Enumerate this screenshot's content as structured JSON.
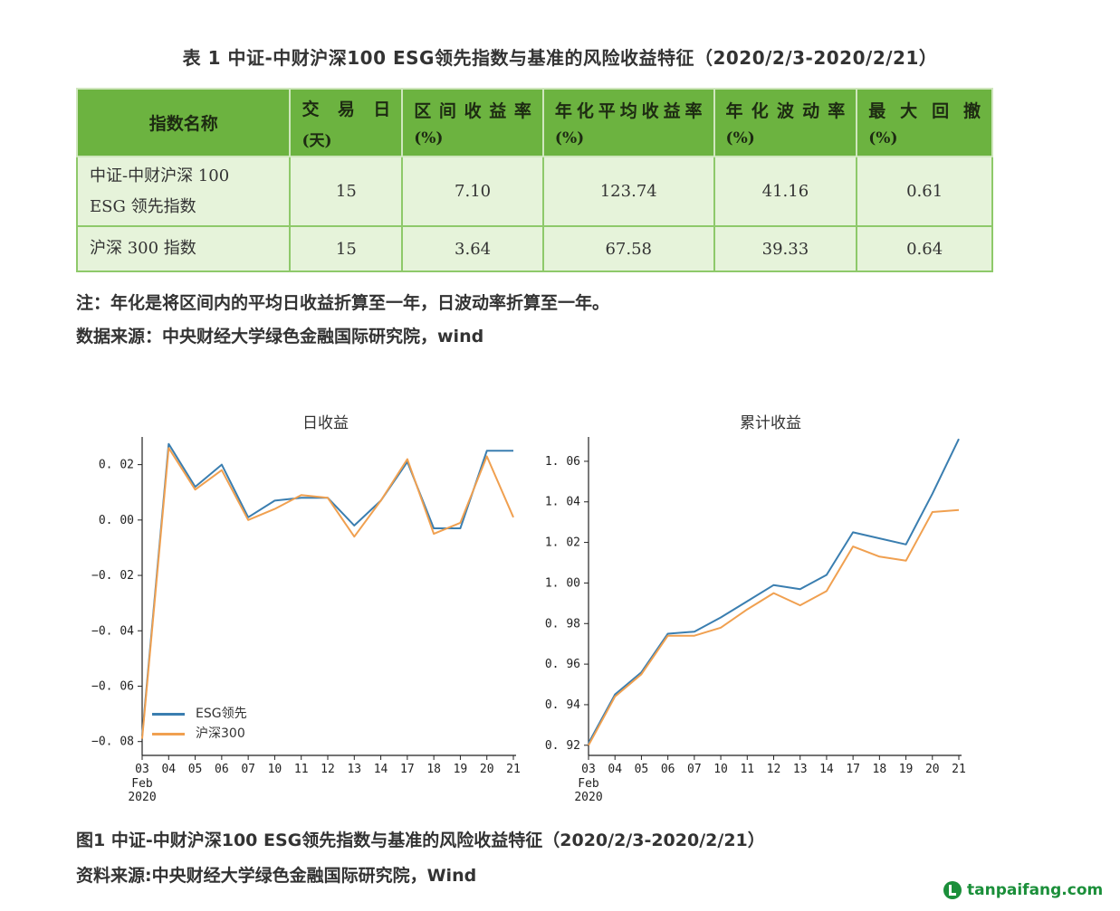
{
  "table": {
    "title": "表 1 中证-中财沪深100 ESG领先指数与基准的风险收益特征（2020/2/3-2020/2/21）",
    "headers": [
      {
        "line1": "指数名称",
        "line2": ""
      },
      {
        "line1": "交易日",
        "line2": "(天)"
      },
      {
        "line1": "区间收益率",
        "line2": "(%)"
      },
      {
        "line1": "年化平均收益率",
        "line2": "(%)"
      },
      {
        "line1": "年化波动率",
        "line2": "(%)"
      },
      {
        "line1": "最大回撤",
        "line2": "(%)"
      }
    ],
    "rows": [
      {
        "name_line1": "中证-中财沪深 100",
        "name_line2": "ESG 领先指数",
        "days": "15",
        "period_return": "7.10",
        "annual_return": "123.74",
        "annual_vol": "41.16",
        "max_drawdown": "0.61"
      },
      {
        "name_line1": "沪深 300 指数",
        "name_line2": "",
        "days": "15",
        "period_return": "3.64",
        "annual_return": "67.58",
        "annual_vol": "39.33",
        "max_drawdown": "0.64"
      }
    ]
  },
  "notes": {
    "note": "注：年化是将区间内的平均日收益折算至一年，日波动率折算至一年。",
    "source": "数据来源：中央财经大学绿色金融国际研究院，wind"
  },
  "chart_data": [
    {
      "type": "line",
      "title": "日收益",
      "x": [
        "03",
        "04",
        "05",
        "06",
        "07",
        "10",
        "11",
        "12",
        "13",
        "14",
        "17",
        "18",
        "19",
        "20",
        "21"
      ],
      "x_sub": [
        "Feb",
        "2020"
      ],
      "ylim": [
        -0.085,
        0.03
      ],
      "yticks": [
        0.02,
        0.0,
        -0.02,
        -0.04,
        -0.06,
        -0.08
      ],
      "ytick_labels": [
        "0. 02",
        "0. 00",
        "−0. 02",
        "−0. 04",
        "−0. 06",
        "−0. 08"
      ],
      "grid": false,
      "legend": "bottom-left",
      "series": [
        {
          "name": "ESG领先",
          "color": "#3a7eb0",
          "values": [
            -0.078,
            0.0275,
            0.012,
            0.02,
            0.001,
            0.007,
            0.008,
            0.008,
            -0.002,
            0.007,
            0.021,
            -0.003,
            -0.003,
            0.025,
            0.025
          ]
        },
        {
          "name": "沪深300",
          "color": "#f0a050",
          "values": [
            -0.079,
            0.026,
            0.011,
            0.018,
            0.0,
            0.004,
            0.009,
            0.008,
            -0.006,
            0.007,
            0.022,
            -0.005,
            -0.001,
            0.023,
            0.001
          ]
        }
      ]
    },
    {
      "type": "line",
      "title": "累计收益",
      "x": [
        "03",
        "04",
        "05",
        "06",
        "07",
        "10",
        "11",
        "12",
        "13",
        "14",
        "17",
        "18",
        "19",
        "20",
        "21"
      ],
      "x_sub": [
        "Feb",
        "2020"
      ],
      "ylim": [
        0.915,
        1.072
      ],
      "yticks": [
        1.06,
        1.04,
        1.02,
        1.0,
        0.98,
        0.96,
        0.94,
        0.92
      ],
      "ytick_labels": [
        "1. 06",
        "1. 04",
        "1. 02",
        "1. 00",
        "0. 98",
        "0. 96",
        "0. 94",
        "0. 92"
      ],
      "grid": false,
      "series": [
        {
          "name": "ESG领先",
          "color": "#3a7eb0",
          "values": [
            0.921,
            0.945,
            0.956,
            0.975,
            0.976,
            0.983,
            0.991,
            0.999,
            0.997,
            1.004,
            1.025,
            1.022,
            1.019,
            1.044,
            1.071
          ]
        },
        {
          "name": "沪深300",
          "color": "#f0a050",
          "values": [
            0.92,
            0.944,
            0.955,
            0.974,
            0.974,
            0.978,
            0.987,
            0.995,
            0.989,
            0.996,
            1.018,
            1.013,
            1.011,
            1.035,
            1.036
          ]
        }
      ]
    }
  ],
  "figure": {
    "caption": "图1 中证-中财沪深100 ESG领先指数与基准的风险收益特征（2020/2/3-2020/2/21）",
    "source": "资料来源:中央财经大学绿色金融国际研究院，Wind"
  },
  "watermark": "tanpaifang.com"
}
